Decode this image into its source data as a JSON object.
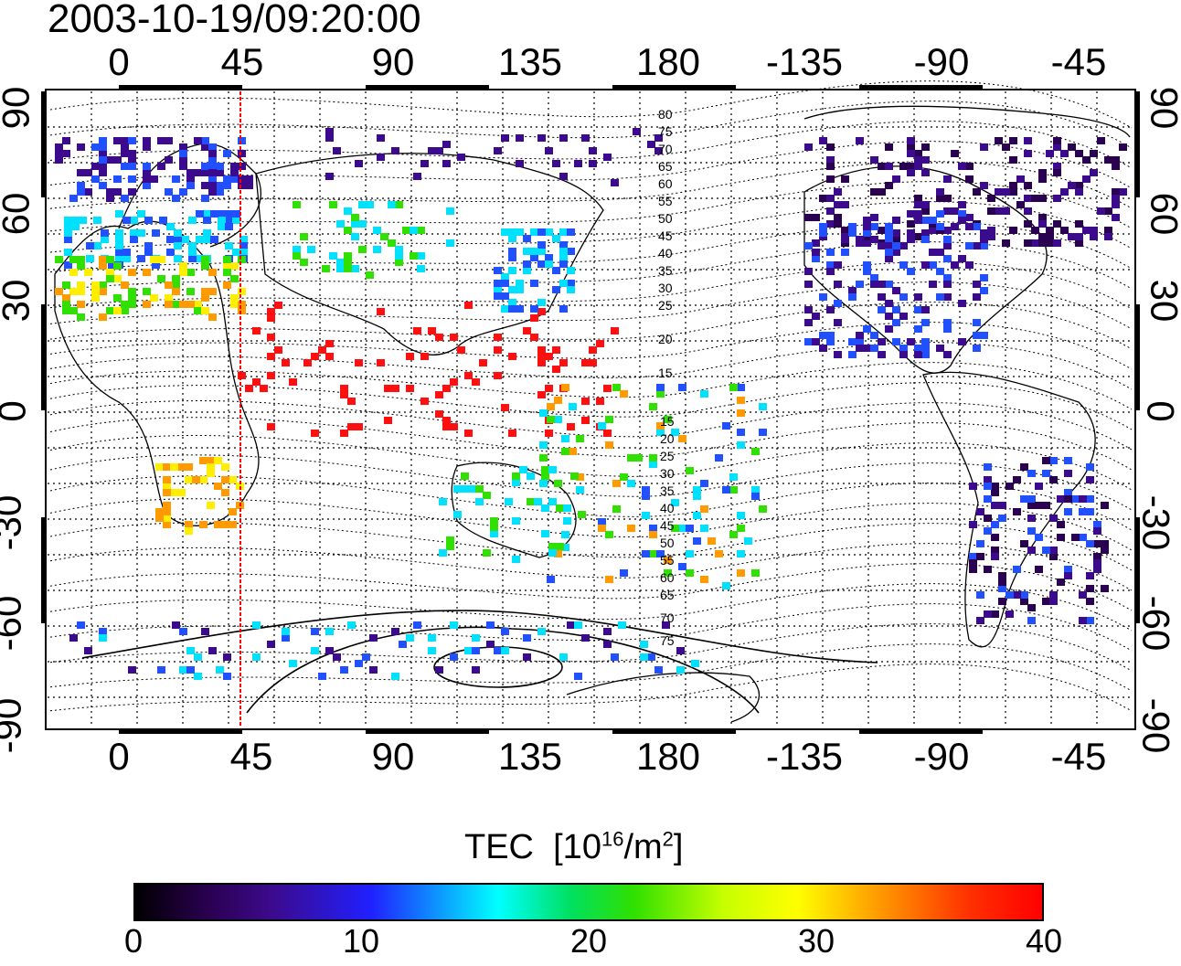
{
  "title": "2003-10-19/09:20:00",
  "longitude_ticks": [
    "0",
    "45",
    "90",
    "135",
    "180",
    "-135",
    "-90",
    "-45"
  ],
  "latitude_ticks_left": [
    "90",
    "60",
    "30",
    "0",
    "-30",
    "-60",
    "-90"
  ],
  "latitude_ticks_right": [
    "90",
    "60",
    "30",
    "0",
    "-30",
    "-60",
    "-90"
  ],
  "contour_labels_north": [
    "80",
    "75",
    "70",
    "65",
    "60",
    "55",
    "50",
    "45",
    "40",
    "35",
    "30",
    "25",
    "20",
    "15"
  ],
  "contour_labels_south": [
    "15",
    "20",
    "25",
    "30",
    "35",
    "40",
    "45",
    "50",
    "55",
    "60",
    "65",
    "70",
    "75"
  ],
  "colorbar": {
    "title": "TEC",
    "unit_prefix": "[10",
    "unit_exp": "16",
    "unit_mid": "/m",
    "unit_exp2": "2",
    "unit_suffix": "]",
    "ticks": [
      "0",
      "10",
      "20",
      "30",
      "40"
    ],
    "min": 0,
    "max": 40
  },
  "terminator_longitude": 40,
  "colors": {
    "terminator": "#ff0000",
    "dark": "#2a0050",
    "purple": "#3c0a8c",
    "blue": "#2050ff",
    "cyan": "#00e0ff",
    "green": "#30e000",
    "yellow": "#ffee00",
    "orange": "#ff9a00",
    "red": "#ff1010"
  }
}
